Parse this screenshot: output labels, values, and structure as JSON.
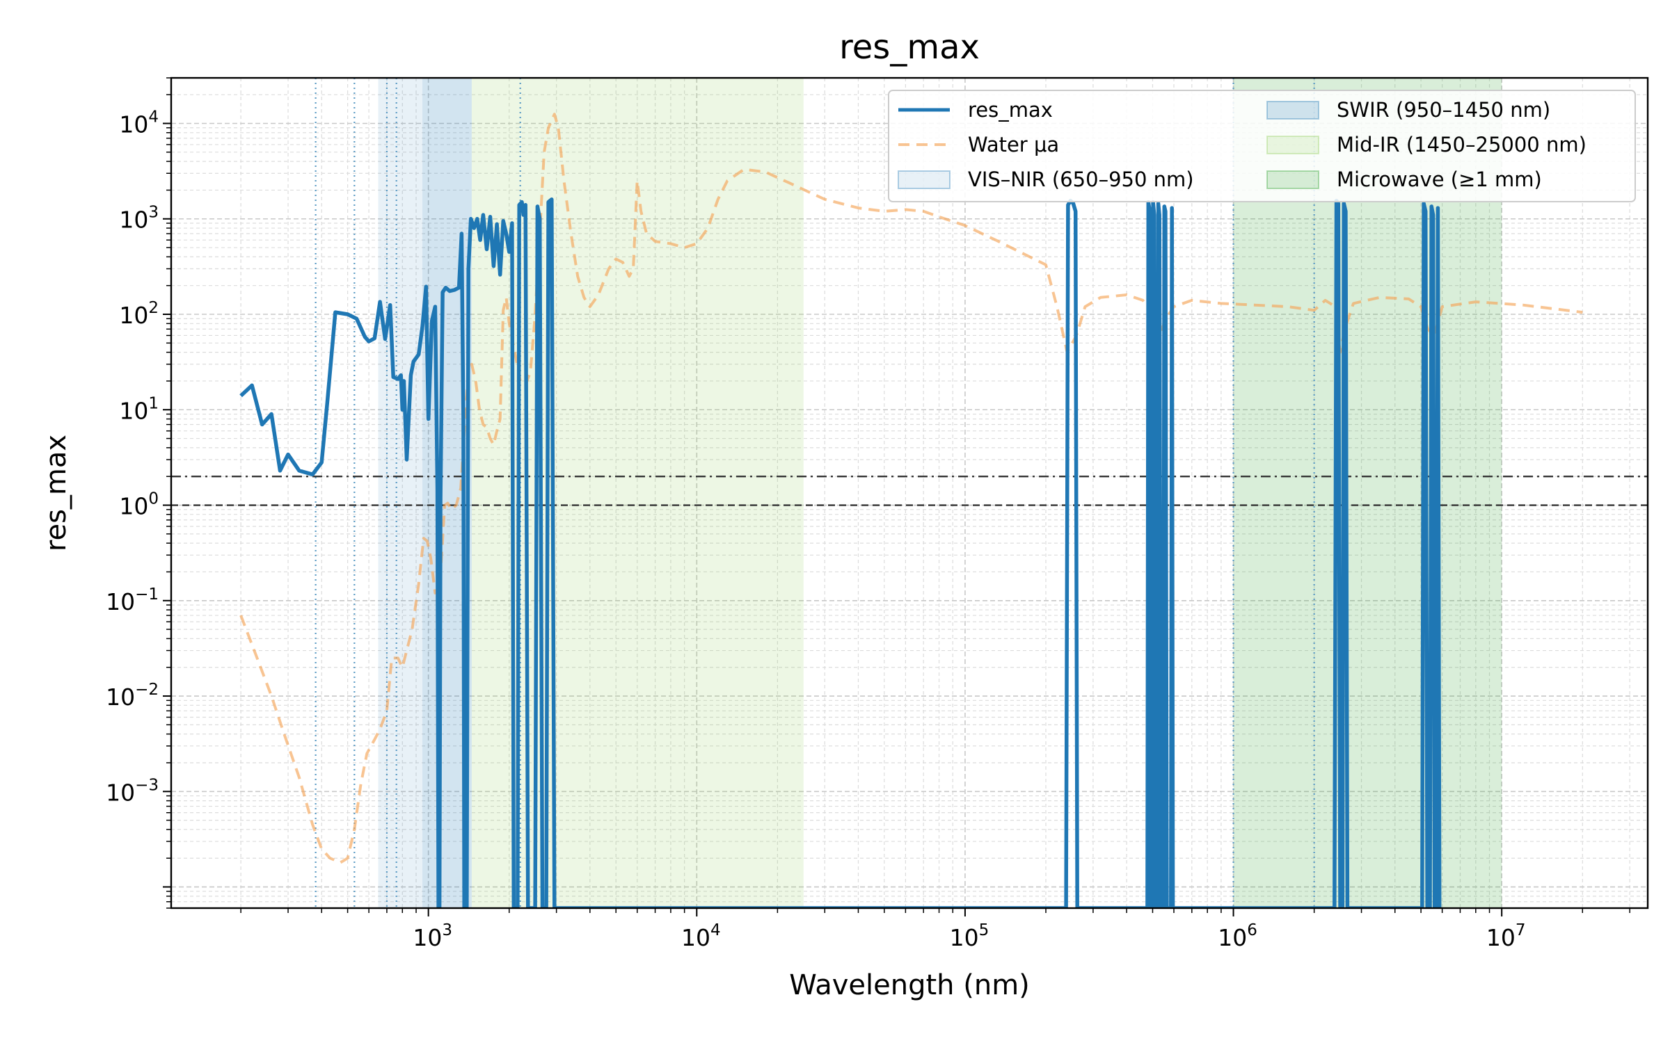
{
  "chart_data": {
    "type": "line",
    "title": "res_max",
    "xlabel": "Wavelength (nm)",
    "ylabel": "res_max",
    "xscale": "log",
    "yscale": "log",
    "xlim": [
      110,
      35000000
    ],
    "ylim": [
      6e-05,
      30000
    ],
    "grid": true,
    "legend_position": "top-right",
    "x_ticks": [
      {
        "value": 1000,
        "base": "10",
        "exp": "3"
      },
      {
        "value": 10000,
        "base": "10",
        "exp": "4"
      },
      {
        "value": 100000,
        "base": "10",
        "exp": "5"
      },
      {
        "value": 1000000,
        "base": "10",
        "exp": "6"
      },
      {
        "value": 10000000,
        "base": "10",
        "exp": "7"
      }
    ],
    "y_ticks": [
      {
        "value": 0.001,
        "base": "10",
        "exp": "−3"
      },
      {
        "value": 0.01,
        "base": "10",
        "exp": "−2"
      },
      {
        "value": 0.1,
        "base": "10",
        "exp": "−1"
      },
      {
        "value": 1,
        "base": "10",
        "exp": "0"
      },
      {
        "value": 10,
        "base": "10",
        "exp": "1"
      },
      {
        "value": 100,
        "base": "10",
        "exp": "2"
      },
      {
        "value": 1000,
        "base": "10",
        "exp": "3"
      },
      {
        "value": 10000,
        "base": "10",
        "exp": "4"
      }
    ],
    "bands": [
      {
        "name": "VIS–NIR (650–950 nm)",
        "x0": 650,
        "x1": 950,
        "color": "#1f77b4",
        "opacity": 0.1
      },
      {
        "name": "SWIR (950–1450 nm)",
        "x0": 950,
        "x1": 1450,
        "color": "#1f77b4",
        "opacity": 0.2
      },
      {
        "name": "Mid-IR (1450–25000 nm)",
        "x0": 1450,
        "x1": 25000,
        "color": "#8fce5a",
        "opacity": 0.16
      },
      {
        "name": "Microwave (≥1 mm)",
        "x0": 1000000,
        "x1": 10000000,
        "color": "#2ca02c",
        "opacity": 0.18
      }
    ],
    "vlines": [
      380,
      530,
      700,
      760,
      2200,
      1000000,
      2000000
    ],
    "hlines": [
      {
        "y": 2,
        "style": "dashdot"
      },
      {
        "y": 1,
        "style": "dashed"
      }
    ],
    "series": [
      {
        "name": "res_max",
        "color": "#1f77b4",
        "style": "solid",
        "points": [
          [
            200,
            14
          ],
          [
            220,
            18
          ],
          [
            240,
            7
          ],
          [
            260,
            9
          ],
          [
            280,
            2.3
          ],
          [
            300,
            3.4
          ],
          [
            330,
            2.3
          ],
          [
            370,
            2.1
          ],
          [
            400,
            2.8
          ],
          [
            420,
            12
          ],
          [
            450,
            105
          ],
          [
            500,
            100
          ],
          [
            540,
            90
          ],
          [
            580,
            58
          ],
          [
            600,
            52
          ],
          [
            630,
            56
          ],
          [
            660,
            135
          ],
          [
            690,
            55
          ],
          [
            720,
            125
          ],
          [
            740,
            22
          ],
          [
            770,
            21
          ],
          [
            790,
            23
          ],
          [
            800,
            10
          ],
          [
            810,
            20
          ],
          [
            830,
            3
          ],
          [
            860,
            23
          ],
          [
            880,
            32
          ],
          [
            920,
            38
          ],
          [
            950,
            75
          ],
          [
            980,
            195
          ],
          [
            1000,
            8
          ],
          [
            1030,
            85
          ],
          [
            1060,
            120
          ],
          [
            1080,
            1.5
          ],
          [
            1090,
            6e-05
          ],
          [
            1100,
            6e-05
          ],
          [
            1110,
            1.2
          ],
          [
            1130,
            170
          ],
          [
            1160,
            190
          ],
          [
            1200,
            175
          ],
          [
            1250,
            180
          ],
          [
            1300,
            190
          ],
          [
            1330,
            700
          ],
          [
            1350,
            8
          ],
          [
            1360,
            6e-05
          ],
          [
            1390,
            6e-05
          ],
          [
            1410,
            300
          ],
          [
            1440,
            1000
          ],
          [
            1480,
            800
          ],
          [
            1520,
            1000
          ],
          [
            1560,
            600
          ],
          [
            1600,
            1100
          ],
          [
            1650,
            480
          ],
          [
            1700,
            1050
          ],
          [
            1750,
            320
          ],
          [
            1800,
            880
          ],
          [
            1850,
            260
          ],
          [
            1900,
            950
          ],
          [
            1950,
            700
          ],
          [
            2000,
            450
          ],
          [
            2050,
            900
          ],
          [
            2080,
            6e-05
          ],
          [
            2150,
            6e-05
          ],
          [
            2180,
            1400
          ],
          [
            2230,
            1500
          ],
          [
            2260,
            1100
          ],
          [
            2300,
            1400
          ],
          [
            2350,
            6e-05
          ],
          [
            2500,
            6e-05
          ],
          [
            2550,
            1350
          ],
          [
            2600,
            1000
          ],
          [
            2660,
            6e-05
          ],
          [
            2750,
            6e-05
          ],
          [
            2800,
            1500
          ],
          [
            2880,
            1600
          ],
          [
            2950,
            6e-05
          ],
          [
            238000,
            6e-05
          ],
          [
            242000,
            1400
          ],
          [
            247000,
            1550
          ],
          [
            253000,
            1450
          ],
          [
            258000,
            1200
          ],
          [
            262000,
            6e-05
          ],
          [
            478000,
            6e-05
          ],
          [
            482000,
            1500
          ],
          [
            488000,
            1200
          ],
          [
            493000,
            6e-05
          ],
          [
            498000,
            6e-05
          ],
          [
            502000,
            1500
          ],
          [
            507000,
            1100
          ],
          [
            512000,
            6e-05
          ],
          [
            520000,
            6e-05
          ],
          [
            525000,
            1450
          ],
          [
            530000,
            1100
          ],
          [
            537000,
            6e-05
          ],
          [
            548000,
            6e-05
          ],
          [
            553000,
            1350
          ],
          [
            558000,
            1200
          ],
          [
            565000,
            6e-05
          ],
          [
            585000,
            6e-05
          ],
          [
            590000,
            1300
          ],
          [
            595000,
            6e-05
          ],
          [
            2380000,
            6e-05
          ],
          [
            2420000,
            1550
          ],
          [
            2460000,
            1450
          ],
          [
            2500000,
            6e-05
          ],
          [
            2550000,
            6e-05
          ],
          [
            2580000,
            1450
          ],
          [
            2620000,
            1200
          ],
          [
            2660000,
            6e-05
          ],
          [
            5050000,
            6e-05
          ],
          [
            5120000,
            1450
          ],
          [
            5200000,
            1200
          ],
          [
            5280000,
            6e-05
          ],
          [
            5400000,
            6e-05
          ],
          [
            5470000,
            1350
          ],
          [
            5550000,
            1100
          ],
          [
            5620000,
            6e-05
          ],
          [
            5700000,
            6e-05
          ],
          [
            5780000,
            1300
          ],
          [
            5860000,
            6e-05
          ]
        ]
      },
      {
        "name": "Water μa",
        "color": "#f5a457",
        "style": "dashed",
        "points": [
          [
            200,
            0.07
          ],
          [
            230,
            0.025
          ],
          [
            260,
            0.01
          ],
          [
            290,
            0.004
          ],
          [
            330,
            0.0014
          ],
          [
            370,
            0.00045
          ],
          [
            400,
            0.00025
          ],
          [
            430,
            0.0002
          ],
          [
            470,
            0.00018
          ],
          [
            500,
            0.0002
          ],
          [
            530,
            0.0004
          ],
          [
            560,
            0.0012
          ],
          [
            590,
            0.0025
          ],
          [
            630,
            0.0035
          ],
          [
            660,
            0.0045
          ],
          [
            700,
            0.007
          ],
          [
            730,
            0.025
          ],
          [
            770,
            0.025
          ],
          [
            800,
            0.02
          ],
          [
            830,
            0.03
          ],
          [
            870,
            0.05
          ],
          [
            920,
            0.15
          ],
          [
            960,
            0.45
          ],
          [
            990,
            0.42
          ],
          [
            1020,
            0.28
          ],
          [
            1060,
            0.12
          ],
          [
            1100,
            0.13
          ],
          [
            1150,
            1.0
          ],
          [
            1180,
            1.05
          ],
          [
            1220,
            0.9
          ],
          [
            1270,
            1.0
          ],
          [
            1320,
            1.5
          ],
          [
            1370,
            8
          ],
          [
            1410,
            25
          ],
          [
            1450,
            30
          ],
          [
            1500,
            20
          ],
          [
            1550,
            10
          ],
          [
            1600,
            7
          ],
          [
            1650,
            6.5
          ],
          [
            1700,
            5
          ],
          [
            1750,
            4.3
          ],
          [
            1800,
            6
          ],
          [
            1850,
            8
          ],
          [
            1900,
            110
          ],
          [
            1950,
            150
          ],
          [
            2000,
            80
          ],
          [
            2100,
            40
          ],
          [
            2200,
            20
          ],
          [
            2300,
            18
          ],
          [
            2400,
            25
          ],
          [
            2500,
            100
          ],
          [
            2600,
            700
          ],
          [
            2700,
            5000
          ],
          [
            2800,
            9000
          ],
          [
            2950,
            12500
          ],
          [
            3050,
            9000
          ],
          [
            3200,
            2500
          ],
          [
            3400,
            700
          ],
          [
            3600,
            250
          ],
          [
            3800,
            150
          ],
          [
            4000,
            120
          ],
          [
            4300,
            160
          ],
          [
            4700,
            300
          ],
          [
            5000,
            380
          ],
          [
            5300,
            350
          ],
          [
            5600,
            250
          ],
          [
            5800,
            300
          ],
          [
            6000,
            2500
          ],
          [
            6200,
            1200
          ],
          [
            6500,
            700
          ],
          [
            7000,
            580
          ],
          [
            8000,
            550
          ],
          [
            9000,
            500
          ],
          [
            10000,
            550
          ],
          [
            11000,
            800
          ],
          [
            12000,
            1600
          ],
          [
            13000,
            2500
          ],
          [
            15000,
            3300
          ],
          [
            18000,
            3100
          ],
          [
            22000,
            2400
          ],
          [
            30000,
            1600
          ],
          [
            40000,
            1300
          ],
          [
            50000,
            1200
          ],
          [
            60000,
            1250
          ],
          [
            70000,
            1200
          ],
          [
            80000,
            1050
          ],
          [
            100000,
            850
          ],
          [
            130000,
            600
          ],
          [
            160000,
            450
          ],
          [
            200000,
            330
          ],
          [
            220000,
            120
          ],
          [
            240000,
            40
          ],
          [
            260000,
            60
          ],
          [
            280000,
            120
          ],
          [
            320000,
            150
          ],
          [
            400000,
            160
          ],
          [
            460000,
            140
          ],
          [
            500000,
            100
          ],
          [
            530000,
            60
          ],
          [
            560000,
            90
          ],
          [
            600000,
            120
          ],
          [
            700000,
            140
          ],
          [
            900000,
            130
          ],
          [
            1200000,
            125
          ],
          [
            1600000,
            120
          ],
          [
            2000000,
            110
          ],
          [
            2200000,
            140
          ],
          [
            2400000,
            120
          ],
          [
            2500000,
            40
          ],
          [
            2600000,
            70
          ],
          [
            2800000,
            130
          ],
          [
            3500000,
            150
          ],
          [
            4500000,
            145
          ],
          [
            5000000,
            120
          ],
          [
            5300000,
            70
          ],
          [
            5600000,
            60
          ],
          [
            6000000,
            120
          ],
          [
            8000000,
            135
          ],
          [
            12000000,
            125
          ],
          [
            20000000,
            105
          ]
        ]
      }
    ],
    "legend": [
      {
        "label": "res_max",
        "kind": "line",
        "color": "#1f77b4",
        "style": "solid"
      },
      {
        "label": "Water μa",
        "kind": "line",
        "color": "#f5a457",
        "style": "dashed"
      },
      {
        "label": "VIS–NIR (650–950 nm)",
        "kind": "patch",
        "color": "#1f77b4",
        "opacity": 0.1
      },
      {
        "label": "SWIR (950–1450 nm)",
        "kind": "patch",
        "color": "#1f77b4",
        "opacity": 0.2
      },
      {
        "label": "Mid-IR (1450–25000 nm)",
        "kind": "patch",
        "color": "#8fce5a",
        "opacity": 0.16
      },
      {
        "label": "Microwave (≥1 mm)",
        "kind": "patch",
        "color": "#2ca02c",
        "opacity": 0.18
      }
    ]
  }
}
